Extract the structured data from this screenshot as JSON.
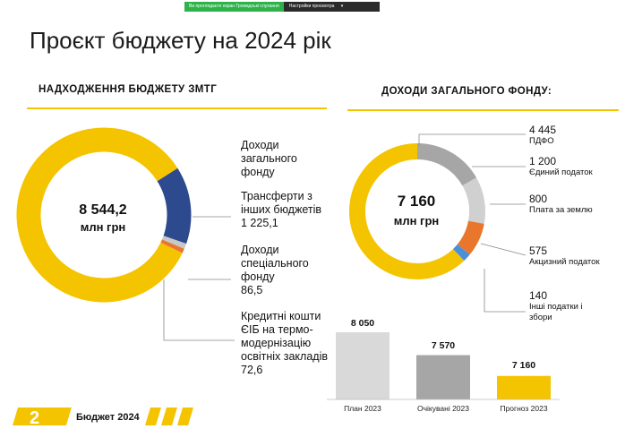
{
  "banner": {
    "sharing_text": "Ви проглядаєте екран Громадські слухання",
    "settings_label": "Настройки просмотра",
    "chevron_icon": "chevron-down-icon"
  },
  "title": "Проєкт бюджету на 2024 рік",
  "left": {
    "heading": "НАДХОДЖЕННЯ БЮДЖЕТУ ЗМТГ",
    "total_value": "8 544,2",
    "total_unit": "млн грн",
    "legend": [
      {
        "text": "Доходи загального фонду"
      },
      {
        "text": "Трансферти з інших бюджетів",
        "value": "1 225,1"
      },
      {
        "text": "Доходи спеціального фонду",
        "value": "86,5"
      },
      {
        "text": "Кредитні кошти ЄІБ на термо-модернізацію освітніх закладів",
        "value": "72,6"
      }
    ],
    "colors": [
      "#f5c400",
      "#2e4a8f",
      "#c8c8c8",
      "#e8762d"
    ]
  },
  "right": {
    "heading": "ДОХОДИ ЗАГАЛЬНОГО ФОНДУ:",
    "total_value": "7 160",
    "total_unit": "млн грн",
    "legend": [
      {
        "value": "4 445",
        "text": "ПДФО"
      },
      {
        "value": "1 200",
        "text": "Єдиний податок"
      },
      {
        "value": "800",
        "text": "Плата за землю"
      },
      {
        "value": "575",
        "text": "Акцизний податок"
      },
      {
        "value": "140",
        "text": "Інші податки і збори"
      }
    ],
    "colors": [
      "#f5c400",
      "#a6a6a6",
      "#d0d0d0",
      "#e8762d",
      "#4a90d9"
    ]
  },
  "chart_data": [
    {
      "type": "pie",
      "title": "НАДХОДЖЕННЯ БЮДЖЕТУ ЗМТГ",
      "categories": [
        "Доходи загального фонду",
        "Трансферти з інших бюджетів",
        "Доходи спеціального фонду",
        "Кредитні кошти ЄІБ на термо-модернізацію освітніх закладів"
      ],
      "values": [
        7160,
        1225.1,
        86.5,
        72.6
      ]
    },
    {
      "type": "pie",
      "title": "ДОХОДИ ЗАГАЛЬНОГО ФОНДУ:",
      "categories": [
        "ПДФО",
        "Єдиний податок",
        "Плата за землю",
        "Акцизний податок",
        "Інші податки і збори"
      ],
      "values": [
        4445,
        1200,
        800,
        575,
        140
      ]
    },
    {
      "type": "bar",
      "categories": [
        "План 2023",
        "Очікувані 2023",
        "Прогноз 2023"
      ],
      "values": [
        8050,
        7570,
        7160
      ],
      "value_labels": [
        "8 050",
        "7 570",
        "7 160"
      ],
      "colors": [
        "#d9d9d9",
        "#a6a6a6",
        "#f5c400"
      ],
      "ylim": [
        0,
        8050
      ]
    }
  ],
  "footer": {
    "page_number": "2",
    "text": "Бюджет 2024"
  }
}
